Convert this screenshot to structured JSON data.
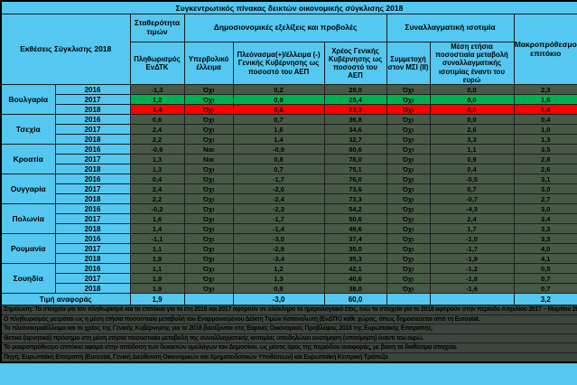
{
  "title": "Συγκεντρωτικός πίνακας δεικτών οικονομικής σύγκλισης 2018",
  "header": {
    "row_label": "Εκθέσεις Σύγκλισης 2018",
    "groups": [
      "Σταθερότητα τιμών",
      "Δημοσιονομικές εξελίξεις και προβολές",
      "Συναλλαγματική ισοτιμία",
      "Μακροπρόθεσμο επιτόκιο"
    ],
    "subs": [
      "Πληθωρισμός ΕνΔΤΚ",
      "Υπερβολικό έλλειμα",
      "Πλεόνασμα(+)/έλλειμα (-) Γενικής Κυβέρνησης ως ποσοστό του ΑΕΠ",
      "Χρέος Γενικής Κυβέρνησης ως ποσοστό του ΑΕΠ",
      "Συμμετοχή στον ΜΣΙ (ΙΙ)",
      "Μέση ετήσια ποσοστιαία μεταβολή συναλλαγματικής ισοτιμίας έναντι του ευρώ"
    ]
  },
  "column_keys": [
    "hicp-inflation",
    "excessive-deficit",
    "govt-balance",
    "govt-debt",
    "erm2-participation",
    "fx-change-vs-euro",
    "long-term-rate"
  ],
  "countries": [
    {
      "name": "Βουλγαρία",
      "rows": [
        {
          "year": "2016",
          "highlight": "none",
          "values": [
            "-1,3",
            "Όχι",
            "0,2",
            "29,0",
            "Όχι",
            "0,0",
            "2,3"
          ]
        },
        {
          "year": "2017",
          "highlight": "green",
          "values": [
            "1,2",
            "Όχι",
            "0,9",
            "25,4",
            "Όχι",
            "0,0",
            "1,6"
          ]
        },
        {
          "year": "2018",
          "highlight": "red",
          "values": [
            "1,4",
            "Όχι",
            "0,6",
            "23,3",
            "Όχι",
            "0,0",
            "1,4"
          ]
        }
      ]
    },
    {
      "name": "Τσεχία",
      "rows": [
        {
          "year": "2016",
          "highlight": "none",
          "values": [
            "0,6",
            "Όχι",
            "0,7",
            "36,8",
            "Όχι",
            "0,0",
            "0,4"
          ]
        },
        {
          "year": "2017",
          "highlight": "none",
          "values": [
            "2,4",
            "Όχι",
            "1,6",
            "34,6",
            "Όχι",
            "2,6",
            "1,0"
          ]
        },
        {
          "year": "2018",
          "highlight": "none",
          "values": [
            "2,2",
            "Όχι",
            "1,4",
            "32,7",
            "Όχι",
            "3,3",
            "1,3"
          ]
        }
      ]
    },
    {
      "name": "Κροατία",
      "rows": [
        {
          "year": "2016",
          "highlight": "none",
          "values": [
            "-0,6",
            "Ναι",
            "-0,9",
            "80,6",
            "Όχι",
            "1,1",
            "3,5"
          ]
        },
        {
          "year": "2017",
          "highlight": "none",
          "values": [
            "1,3",
            "Ναι",
            "0,8",
            "78,0",
            "Όχι",
            "0,9",
            "2,8"
          ]
        },
        {
          "year": "2018",
          "highlight": "none",
          "values": [
            "1,3",
            "Όχι",
            "0,7",
            "75,1",
            "Όχι",
            "0,4",
            "2,6"
          ]
        }
      ]
    },
    {
      "name": "Ουγγαρία",
      "rows": [
        {
          "year": "2016",
          "highlight": "none",
          "values": [
            "0,4",
            "Όχι",
            "-1,7",
            "76,0",
            "Όχι",
            "-0,5",
            "3,1"
          ]
        },
        {
          "year": "2017",
          "highlight": "none",
          "values": [
            "2,4",
            "Όχι",
            "-2,0",
            "73,6",
            "Όχι",
            "0,7",
            "3,0"
          ]
        },
        {
          "year": "2018",
          "highlight": "none",
          "values": [
            "2,2",
            "Όχι",
            "-2,4",
            "73,3",
            "Όχι",
            "-0,7",
            "2,7"
          ]
        }
      ]
    },
    {
      "name": "Πολωνία",
      "rows": [
        {
          "year": "2016",
          "highlight": "none",
          "values": [
            "-0,2",
            "Όχι",
            "-2,3",
            "54,2",
            "Όχι",
            "-4,3",
            "3,0"
          ]
        },
        {
          "year": "2017",
          "highlight": "none",
          "values": [
            "1,6",
            "Όχι",
            "-1,7",
            "50,6",
            "Όχι",
            "2,4",
            "3,4"
          ]
        },
        {
          "year": "2018",
          "highlight": "none",
          "values": [
            "1,4",
            "Όχι",
            "-1,4",
            "49,6",
            "Όχι",
            "1,7",
            "3,3"
          ]
        }
      ]
    },
    {
      "name": "Ρουμανία",
      "rows": [
        {
          "year": "2016",
          "highlight": "none",
          "values": [
            "-1,1",
            "Όχι",
            "-3,0",
            "37,4",
            "Όχι",
            "-1,0",
            "3,3"
          ]
        },
        {
          "year": "2017",
          "highlight": "none",
          "values": [
            "1,1",
            "Όχι",
            "-2,9",
            "35,0",
            "Όχι",
            "-1,7",
            "4,0"
          ]
        },
        {
          "year": "2018",
          "highlight": "none",
          "values": [
            "1,9",
            "Όχι",
            "-3,4",
            "35,3",
            "Όχι",
            "-1,9",
            "4,1"
          ]
        }
      ]
    },
    {
      "name": "Σουηδία",
      "rows": [
        {
          "year": "2016",
          "highlight": "none",
          "values": [
            "1,1",
            "Όχι",
            "1,2",
            "42,1",
            "Όχι",
            "-1,2",
            "0,5"
          ]
        },
        {
          "year": "2017",
          "highlight": "none",
          "values": [
            "1,9",
            "Όχι",
            "1,3",
            "40,6",
            "Όχι",
            "-1,8",
            "0,7"
          ]
        },
        {
          "year": "2018",
          "highlight": "none",
          "values": [
            "1,9",
            "Όχι",
            "0,8",
            "38,0",
            "Όχι",
            "-1,6",
            "0,7"
          ]
        }
      ]
    }
  ],
  "reference_row": {
    "label": "Τιμή αναφοράς",
    "values": [
      "1,9",
      "",
      "-3,0",
      "60,0",
      "",
      "",
      "3,2"
    ]
  },
  "footnotes": [
    "Σημείωση: Τα στοιχεία για τον πληθωρισμό και τα επιτόκια για τα έτη 2016 και 2017 αφορούν σε ολόκληρο το ημερολογιακό έτος, ενώ τα στοιχεία για το 2018 αφορούν στην περίοδο Απριλίου 2017 – Μαρτίου 2018.",
    "Ο πληθωρισμός μετράται ως η μέση ετήσια ποσοστιαία μεταβολή του Εναρμονισμένου Δείκτη Τιμών Καταναλωτή (ΕνΔΤΚ) κάθε χώρας, όπως δημοσιεύεται από τη Eurostat.",
    "Το πλεόνασμα/έλλειμα και το χρέος της Γενικής Κυβέρνησης για το 2018 βασίζονται στις Εαρινές Οικονομικές Προβλέψεις 2018 της Ευρωπαϊκής Επιτροπής.",
    "Θετικό (αρνητικό) πρόσημο στη μέση ετήσια ποσοστιαία μεταβολή της συναλλαγματικής ισοτιμίας υποδηλώνει ανατίμηση (υποτίμηση) έναντι του ευρώ.",
    "Το μακροπρόθεσμο επιτόκιο αφορά στην απόδοση των δεκαετών ομολόγων του Δημοσίου, ως μέσος όρος της περιόδου αναφοράς, με βάση τα διαθέσιμα στοιχεία.",
    "Πηγή: Ευρωπαϊκή Επιτροπή (Eurostat, Γενική Διεύθυνση Οικονομικών και Χρηματοδοτικών Υποθέσεων) και Ευρωπαϊκή Κεντρική Τράπεζα"
  ],
  "colors": {
    "header_blue": "#54c8f0",
    "data_cell_dark_green": "#485a46",
    "pass_green": "#00b050",
    "fail_red": "#ff0000",
    "footnote_dark": "#3d463d",
    "border": "#1f1f1f"
  }
}
